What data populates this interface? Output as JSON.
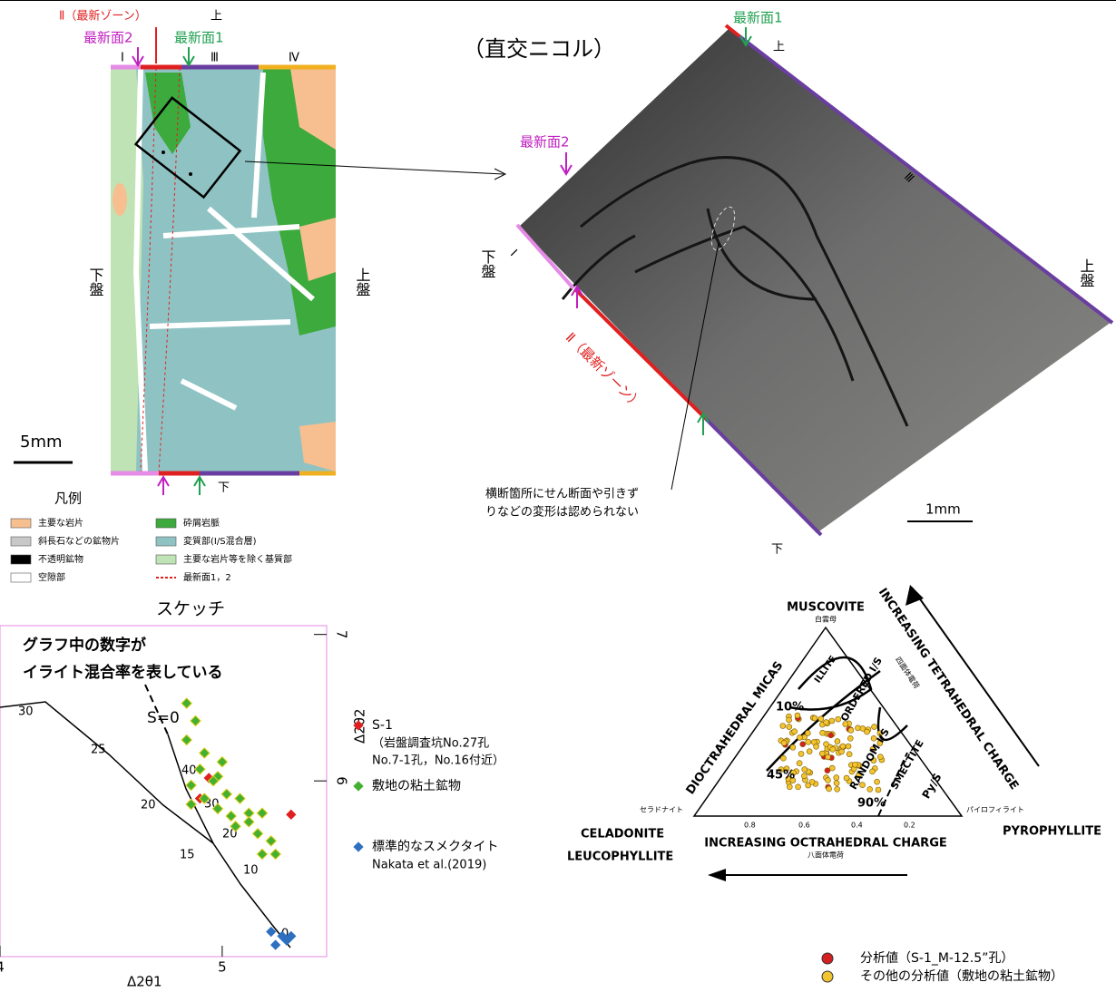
{
  "sketch": {
    "zone_II": "Ⅱ（最新ゾーン）",
    "top": "上",
    "bottom": "下",
    "plane2": "最新面2",
    "plane1": "最新面1",
    "zone_I": "Ⅰ",
    "zone_III": "Ⅲ",
    "zone_IV": "Ⅳ",
    "footwall": "下盤",
    "hanging": "上盤",
    "scale": "5mm",
    "caption": "スケッチ"
  },
  "legend": {
    "title": "凡例",
    "items": [
      {
        "label": "主要な岩片",
        "color": "#f7bf8f"
      },
      {
        "label": "砕屑岩脈",
        "color": "#3caa3c"
      },
      {
        "label": "斜長石などの鉱物片",
        "color": "#c8c8c8"
      },
      {
        "label": "変質部(I/S混合層)",
        "color": "#8fc3c3"
      },
      {
        "label": "不透明鉱物",
        "color": "#000000"
      },
      {
        "label": "主要な岩片等を除く基質部",
        "color": "#bfe3b5"
      },
      {
        "label": "空隙部",
        "color": "#ffffff"
      },
      {
        "label": "最新面1，2",
        "color": "#e02020"
      }
    ]
  },
  "photo": {
    "title": "（直交ニコル）",
    "plane1": "最新面1",
    "plane2": "最新面2",
    "top": "上",
    "bottom": "下",
    "zone_I": "Ⅰ",
    "zone_III": "Ⅲ",
    "zone_II": "Ⅱ（最新ゾーン）",
    "footwall": "下盤",
    "hanging": "上盤",
    "note": [
      "横断箇所にせん断面や引きず",
      "りなどの変形は認められない"
    ],
    "scale": "1mm"
  },
  "xrd": {
    "note": [
      "グラフ中の数字が",
      "イライト混合率を表している"
    ],
    "s_label": "S=0",
    "x_label": "Δ2θ1",
    "y_label": "Δ2θ2",
    "xlim": [
      4,
      5.47
    ],
    "ylim": [
      4.8,
      7.06
    ],
    "xticks": [
      4,
      5
    ],
    "yticks": [
      6,
      7
    ],
    "curve_labels": [
      "40",
      "30",
      "20",
      "15",
      "10",
      "0",
      "30",
      "25",
      "20"
    ],
    "series": [
      {
        "name": "S-1",
        "detail": [
          "（岩盤調査坑No.27孔",
          "No.7-1孔，No.16付近）"
        ],
        "color": "#e02020",
        "x": [
          4.94,
          4.9,
          5.31
        ],
        "y": [
          6.02,
          5.88,
          5.77
        ]
      },
      {
        "name": "敷地の粘土鉱物",
        "color": "#44b030",
        "x": [
          4.84,
          4.88,
          4.84,
          4.92,
          5.0,
          4.9,
          4.98,
          4.86,
          4.96,
          5.02,
          4.92,
          4.86,
          4.98,
          5.08,
          5.12,
          5.04,
          5.18,
          5.06,
          5.16,
          5.22,
          5.12,
          5.24,
          5.18
        ],
        "y": [
          6.53,
          6.41,
          6.28,
          6.19,
          6.13,
          6.08,
          6.03,
          5.97,
          6.0,
          5.91,
          5.88,
          5.84,
          5.81,
          5.88,
          5.78,
          5.76,
          5.78,
          5.69,
          5.64,
          5.59,
          5.72,
          5.5,
          5.5
        ]
      },
      {
        "name": "標準的なスメクタイト",
        "detail": [
          "Nakata et al.(2019)"
        ],
        "color": "#2e6fc0",
        "x": [
          5.22,
          5.27,
          5.29,
          5.24,
          5.31
        ],
        "y": [
          4.97,
          4.94,
          4.91,
          4.88,
          4.94
        ]
      }
    ]
  },
  "ternary": {
    "apex": "MUSCOVITE",
    "apex_jp": "白雲母",
    "left": [
      "CELADONITE",
      "LEUCOPHYLLITE"
    ],
    "left_jp": "セラドナイト",
    "right": "PYROPHYLLITE",
    "right_jp": "パイロフィライト",
    "left_side": "DIOCTRAHEDRAL MICAS",
    "right_side": "INCREASING TETRAHEDRAL CHARGE",
    "right_side_jp": "四面体電荷",
    "bottom": "INCREASING OCTRAHEDRAL CHARGE",
    "bottom_jp": "八面体電荷",
    "regions": [
      "ILLITE",
      "ORDERED I/S",
      "RANDOM I/S",
      "SMECTITE",
      "Py/S"
    ],
    "percents": [
      "10%",
      "45%",
      "90%"
    ],
    "side_ticks": [
      "0.8",
      "0.6",
      "0.4",
      "0.2"
    ],
    "legend": [
      {
        "label": "分析値（S-1_M-12.5”孔）",
        "color": "#d42020"
      },
      {
        "label": "その他の分析値（敷地の粘土鉱物）",
        "color": "#f2c431"
      }
    ]
  }
}
